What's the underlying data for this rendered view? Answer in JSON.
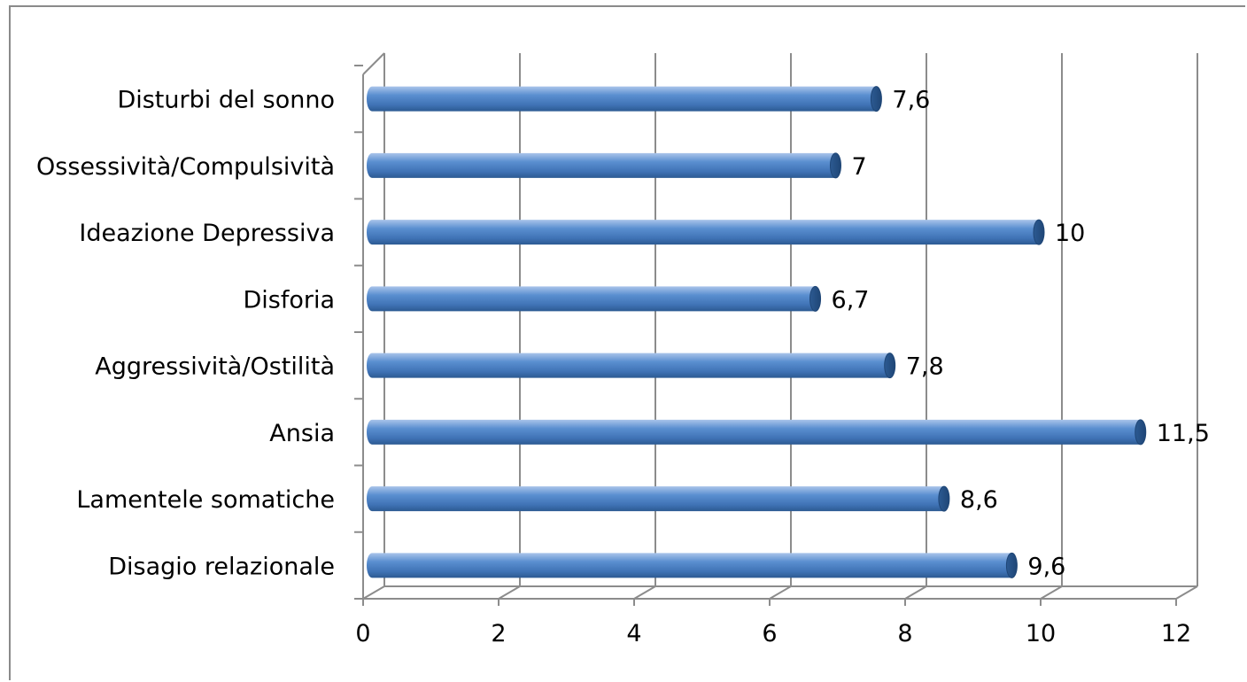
{
  "chart_data": {
    "type": "bar",
    "orientation": "horizontal",
    "categories": [
      "Disagio relazionale",
      "Lamentele somatiche",
      "Ansia",
      "Aggressività/Ostilità",
      "Disforia",
      "Ideazione Depressiva",
      "Ossessività/Compulsività",
      "Disturbi del sonno"
    ],
    "values": [
      9.6,
      8.6,
      11.5,
      7.8,
      6.7,
      10,
      7,
      7.6
    ],
    "data_labels": [
      "9,6",
      "8,6",
      "11,5",
      "7,8",
      "6,7",
      "10",
      "7",
      "7,6"
    ],
    "x_ticks": [
      "0",
      "2",
      "4",
      "6",
      "8",
      "10",
      "12"
    ],
    "xlim": [
      0,
      12
    ],
    "grid": true,
    "legend": false,
    "colors": {
      "bar": "#4f81bd",
      "bar_dark": "#2c5a92",
      "bar_light": "#a9c4ea",
      "grid": "#8c8c8c"
    }
  }
}
